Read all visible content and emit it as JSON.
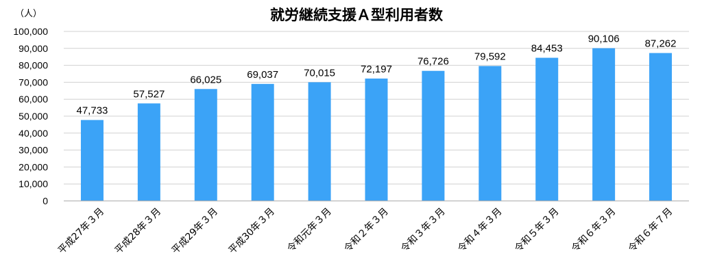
{
  "chart_data": {
    "type": "bar",
    "title": "就労継続支援Ａ型利用者数",
    "unit_label": "（人）",
    "categories": [
      "平成27年３月",
      "平成28年３月",
      "平成29年３月",
      "平成30年３月",
      "令和元年３月",
      "令和２年３月",
      "令和３年３月",
      "令和４年３月",
      "令和５年３月",
      "令和６年３月",
      "令和６年７月"
    ],
    "values": [
      47733,
      57527,
      66025,
      69037,
      70015,
      72197,
      76726,
      79592,
      84453,
      90106,
      87262
    ],
    "value_labels": [
      "47,733",
      "57,527",
      "66,025",
      "69,037",
      "70,015",
      "72,197",
      "76,726",
      "79,592",
      "84,453",
      "90,106",
      "87,262"
    ],
    "yticks": [
      "0",
      "10,000",
      "20,000",
      "30,000",
      "40,000",
      "50,000",
      "60,000",
      "70,000",
      "80,000",
      "90,000",
      "100,000"
    ],
    "ylim": [
      0,
      100000
    ],
    "grid": true,
    "bar_color": "#3ba3f7"
  }
}
